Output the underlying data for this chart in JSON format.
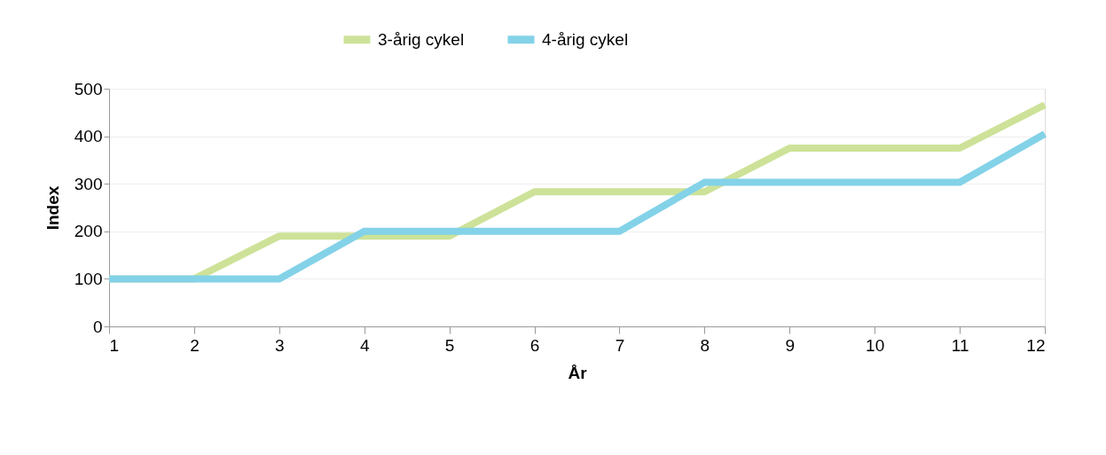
{
  "chart_data": {
    "type": "line",
    "xlabel": "År",
    "ylabel": "Index",
    "x": [
      1,
      2,
      3,
      4,
      5,
      6,
      7,
      8,
      9,
      10,
      11,
      12
    ],
    "series": [
      {
        "name": "3-årig cykel",
        "color": "#cde298",
        "values": [
          100,
          100,
          190,
          190,
          190,
          283,
          283,
          283,
          375,
          375,
          375,
          466
        ]
      },
      {
        "name": "4-årig cykel",
        "color": "#83d2e8",
        "values": [
          100,
          100,
          100,
          200,
          200,
          200,
          200,
          303,
          303,
          303,
          303,
          405
        ]
      }
    ],
    "xlim": [
      1,
      12
    ],
    "xticks": [
      1,
      2,
      3,
      4,
      5,
      6,
      7,
      8,
      9,
      10,
      11,
      12
    ],
    "ylim": [
      0,
      500
    ],
    "yticks": [
      0,
      100,
      200,
      300,
      400,
      500
    ],
    "grid": "y",
    "legend": "top",
    "marker": "none",
    "line_style": "solid"
  }
}
